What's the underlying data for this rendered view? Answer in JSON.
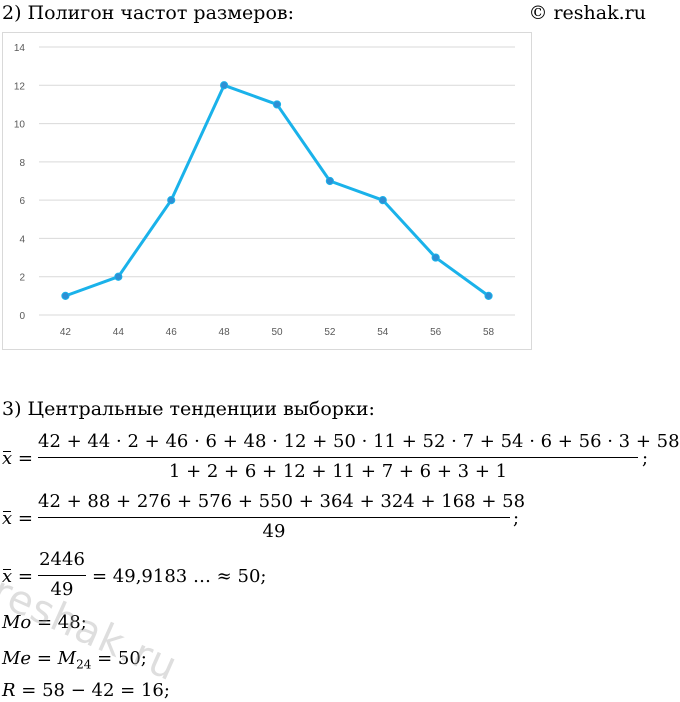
{
  "header": {
    "title": "2) Полигон частот размеров:",
    "copyright": "© reshak.ru"
  },
  "chart_data": {
    "type": "line",
    "x": [
      42,
      44,
      46,
      48,
      50,
      52,
      54,
      56,
      58
    ],
    "y": [
      1,
      2,
      6,
      12,
      11,
      7,
      6,
      3,
      1
    ],
    "yticks": [
      "0",
      "2",
      "4",
      "6",
      "8",
      "10",
      "12",
      "14"
    ],
    "xticks": [
      "42",
      "44",
      "46",
      "48",
      "50",
      "52",
      "54",
      "56",
      "58"
    ],
    "ylim": [
      0,
      14
    ],
    "grid": "horizontal",
    "line_color": "#1ab2ea",
    "marker_color": "#2e8fd4"
  },
  "section3": {
    "heading": "3) Центральные тенденции выборки:",
    "line1_lhs": "x",
    "line1_eq": "=",
    "line1_num": "42 + 44 · 2 + 46 · 6 + 48 · 12 + 50 · 11 + 52 · 7 + 54 · 6 + 56 · 3 + 58",
    "line1_den": "1 + 2 + 6 + 12 + 11 + 7 + 6 + 3 + 1",
    "line1_end": ";",
    "line2_lhs": "x",
    "line2_eq": "=",
    "line2_num": "42 + 88 + 276 + 576 + 550 + 364 + 324 + 168 + 58",
    "line2_den": "49",
    "line2_end": ";",
    "line3_lhs": "x",
    "line3_eq": "=",
    "line3_num": "2446",
    "line3_den": "49",
    "line3_rest": "= 49,9183 … ≈ 50;",
    "mo_label": "Mo",
    "mo_rest": " = 48;",
    "me_label": "Me",
    "me_eq": " = ",
    "me_m": "M",
    "me_sub": "24",
    "me_rest": " = 50;",
    "r_label": "R",
    "r_rest": " = 58 − 42 = 16;"
  },
  "watermark": "reshak.ru"
}
